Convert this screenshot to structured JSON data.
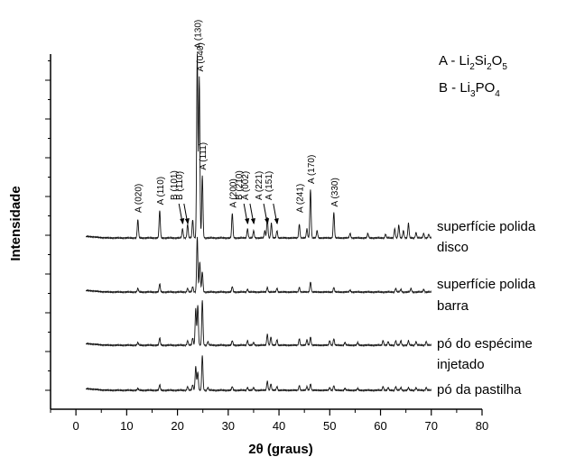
{
  "chart_data": {
    "type": "line",
    "xlabel": "2θ (graus)",
    "ylabel": "Intensidade",
    "xlim": [
      -5,
      80
    ],
    "x_ticks": [
      0,
      10,
      20,
      30,
      40,
      50,
      60,
      70,
      80
    ],
    "y_tick_labels": false,
    "grid": false,
    "legend": {
      "placement": "top-right",
      "entries": [
        {
          "prefix": "A - Li",
          "parts": [
            {
              "t": "2",
              "sub": true
            },
            {
              "t": "Si",
              "sub": false
            },
            {
              "t": "2",
              "sub": true
            },
            {
              "t": "O",
              "sub": false
            },
            {
              "t": "5",
              "sub": true
            }
          ]
        },
        {
          "prefix": "B - Li",
          "parts": [
            {
              "t": "3",
              "sub": true
            },
            {
              "t": "PO",
              "sub": false
            },
            {
              "t": "4",
              "sub": true
            }
          ]
        }
      ]
    },
    "x_range_data": [
      2,
      70
    ],
    "series": [
      {
        "label_lines": [
          "superfície polida",
          "disco"
        ],
        "baseline": 0,
        "peaks": [
          {
            "x": 12.2,
            "h": 20
          },
          {
            "x": 16.5,
            "h": 30
          },
          {
            "x": 21.0,
            "h": 10
          },
          {
            "x": 22.0,
            "h": 15
          },
          {
            "x": 23.0,
            "h": 20
          },
          {
            "x": 23.9,
            "h": 200
          },
          {
            "x": 24.3,
            "h": 175
          },
          {
            "x": 24.9,
            "h": 68
          },
          {
            "x": 30.8,
            "h": 27
          },
          {
            "x": 33.8,
            "h": 10
          },
          {
            "x": 35.0,
            "h": 8
          },
          {
            "x": 37.2,
            "h": 8
          },
          {
            "x": 37.7,
            "h": 22
          },
          {
            "x": 38.5,
            "h": 16
          },
          {
            "x": 39.6,
            "h": 8
          },
          {
            "x": 44.0,
            "h": 15
          },
          {
            "x": 45.5,
            "h": 10
          },
          {
            "x": 46.2,
            "h": 53
          },
          {
            "x": 47.5,
            "h": 8
          },
          {
            "x": 50.8,
            "h": 28
          },
          {
            "x": 54.0,
            "h": 5
          },
          {
            "x": 57.5,
            "h": 5
          },
          {
            "x": 61.0,
            "h": 4
          },
          {
            "x": 62.8,
            "h": 10
          },
          {
            "x": 63.6,
            "h": 14
          },
          {
            "x": 64.5,
            "h": 8
          },
          {
            "x": 65.5,
            "h": 16
          },
          {
            "x": 67.0,
            "h": 6
          },
          {
            "x": 68.5,
            "h": 5
          },
          {
            "x": 69.5,
            "h": 4
          }
        ]
      },
      {
        "label_lines": [
          "superfície polida",
          "barra"
        ],
        "baseline": 0,
        "peaks": [
          {
            "x": 12.2,
            "h": 4
          },
          {
            "x": 16.5,
            "h": 9
          },
          {
            "x": 22.0,
            "h": 4
          },
          {
            "x": 23.0,
            "h": 6
          },
          {
            "x": 23.9,
            "h": 60
          },
          {
            "x": 24.4,
            "h": 33
          },
          {
            "x": 24.9,
            "h": 22
          },
          {
            "x": 30.8,
            "h": 6
          },
          {
            "x": 33.8,
            "h": 3
          },
          {
            "x": 37.7,
            "h": 5
          },
          {
            "x": 39.6,
            "h": 4
          },
          {
            "x": 44.0,
            "h": 5
          },
          {
            "x": 46.2,
            "h": 11
          },
          {
            "x": 50.8,
            "h": 5
          },
          {
            "x": 54.0,
            "h": 2
          },
          {
            "x": 63.0,
            "h": 4
          },
          {
            "x": 64.0,
            "h": 3
          },
          {
            "x": 66.0,
            "h": 4
          },
          {
            "x": 68.5,
            "h": 3
          }
        ]
      },
      {
        "label_lines": [
          "pó do espécime",
          "injetado"
        ],
        "baseline": 0,
        "peaks": [
          {
            "x": 12.2,
            "h": 3
          },
          {
            "x": 16.5,
            "h": 8
          },
          {
            "x": 22.0,
            "h": 5
          },
          {
            "x": 23.0,
            "h": 8
          },
          {
            "x": 23.6,
            "h": 40
          },
          {
            "x": 24.0,
            "h": 44
          },
          {
            "x": 24.9,
            "h": 49
          },
          {
            "x": 26.0,
            "h": 4
          },
          {
            "x": 30.8,
            "h": 5
          },
          {
            "x": 33.8,
            "h": 5
          },
          {
            "x": 35.0,
            "h": 3
          },
          {
            "x": 37.7,
            "h": 12
          },
          {
            "x": 38.4,
            "h": 9
          },
          {
            "x": 39.6,
            "h": 6
          },
          {
            "x": 44.0,
            "h": 7
          },
          {
            "x": 45.5,
            "h": 6
          },
          {
            "x": 46.2,
            "h": 9
          },
          {
            "x": 50.0,
            "h": 5
          },
          {
            "x": 50.8,
            "h": 7
          },
          {
            "x": 53.0,
            "h": 3
          },
          {
            "x": 55.5,
            "h": 3
          },
          {
            "x": 60.5,
            "h": 5
          },
          {
            "x": 61.5,
            "h": 4
          },
          {
            "x": 63.0,
            "h": 5
          },
          {
            "x": 64.0,
            "h": 5
          },
          {
            "x": 65.5,
            "h": 5
          },
          {
            "x": 67.0,
            "h": 4
          },
          {
            "x": 69.0,
            "h": 4
          }
        ]
      },
      {
        "label_lines": [
          "pó da pastilha"
        ],
        "baseline": 0,
        "peaks": [
          {
            "x": 12.2,
            "h": 2
          },
          {
            "x": 16.5,
            "h": 6
          },
          {
            "x": 22.0,
            "h": 4
          },
          {
            "x": 23.0,
            "h": 6
          },
          {
            "x": 23.6,
            "h": 26
          },
          {
            "x": 24.0,
            "h": 20
          },
          {
            "x": 24.9,
            "h": 38
          },
          {
            "x": 26.0,
            "h": 3
          },
          {
            "x": 30.8,
            "h": 4
          },
          {
            "x": 33.8,
            "h": 3
          },
          {
            "x": 35.0,
            "h": 3
          },
          {
            "x": 37.7,
            "h": 10
          },
          {
            "x": 38.4,
            "h": 7
          },
          {
            "x": 39.6,
            "h": 4
          },
          {
            "x": 44.0,
            "h": 5
          },
          {
            "x": 45.5,
            "h": 4
          },
          {
            "x": 46.2,
            "h": 7
          },
          {
            "x": 50.0,
            "h": 3
          },
          {
            "x": 50.8,
            "h": 5
          },
          {
            "x": 53.0,
            "h": 2
          },
          {
            "x": 55.5,
            "h": 2
          },
          {
            "x": 60.5,
            "h": 4
          },
          {
            "x": 61.5,
            "h": 3
          },
          {
            "x": 63.0,
            "h": 4
          },
          {
            "x": 64.0,
            "h": 3
          },
          {
            "x": 65.5,
            "h": 3
          },
          {
            "x": 67.0,
            "h": 3
          },
          {
            "x": 69.0,
            "h": 3
          }
        ]
      }
    ],
    "annotations": [
      {
        "text": "A (020)",
        "x": 12.2
      },
      {
        "text": "A (110)",
        "x": 16.5
      },
      {
        "text": "B (101)",
        "x": 21.0,
        "arrow": true
      },
      {
        "text": "B (110)",
        "x": 22.0,
        "arrow": true
      },
      {
        "text": "A (130)",
        "x": 23.9
      },
      {
        "text": "A (040)",
        "x": 24.3
      },
      {
        "text": "A (111)",
        "x": 24.9
      },
      {
        "text": "A (200)",
        "x": 30.8
      },
      {
        "text": "B (210)",
        "x": 33.8,
        "arrow": true
      },
      {
        "text": "A (002)",
        "x": 35.0,
        "arrow": true
      },
      {
        "text": "A (221)",
        "x": 37.7,
        "arrow": true
      },
      {
        "text": "A (151)",
        "x": 39.6,
        "arrow": true
      },
      {
        "text": "A (241)",
        "x": 44.0
      },
      {
        "text": "A (170)",
        "x": 46.2
      },
      {
        "text": "A (330)",
        "x": 50.8
      }
    ]
  }
}
